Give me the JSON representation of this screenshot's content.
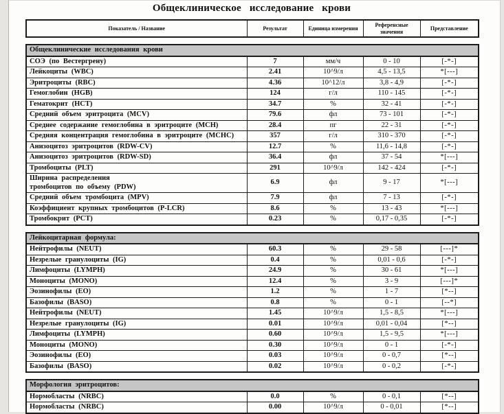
{
  "doc": {
    "title": "Общеклиническое  исследование  крови"
  },
  "colors": {
    "page_bg": "#fdfdfc",
    "margin_bg": "#e7e5e2",
    "border": "#1b1b1b",
    "text": "#111111",
    "section_header_bg": "#c6c6c6"
  },
  "table": {
    "columns": [
      "Показатель / Название",
      "Результат",
      "Единица  измерения",
      "Референсные значения",
      "Представление"
    ],
    "sections": [
      {
        "header": "Общеклинические  исследования  крови",
        "rows": [
          {
            "name": "СОЭ  (по  Вестергрену)",
            "result": "7",
            "unit": "мм/ч",
            "ref": "0 - 10",
            "repr": "[-*-]"
          },
          {
            "name": "Лейкоциты  (WBC)",
            "result": "2.41",
            "unit": "10^9/л",
            "ref": "4,5 - 13,5",
            "repr": "*[---]"
          },
          {
            "name": "Эритроциты  (RBC)",
            "result": "4.36",
            "unit": "10^12/л",
            "ref": "3,8 - 4,9",
            "repr": "[-*-]"
          },
          {
            "name": "Гемоглобин  (HGB)",
            "result": "124",
            "unit": "г/л",
            "ref": "110 - 145",
            "repr": "[-*-]"
          },
          {
            "name": "Гематокрит  (HCT)",
            "result": "34.7",
            "unit": "%",
            "ref": "32 - 41",
            "repr": "[-*-]"
          },
          {
            "name": "Средний объем эритроцита (MCV)",
            "result": "79.6",
            "unit": "фл",
            "ref": "73 - 101",
            "repr": "[-*-]"
          },
          {
            "name": "Среднее содержание гемоглобина в эритроците (MCH)",
            "result": "28.4",
            "unit": "пг",
            "ref": "22 - 31",
            "repr": "[-*-]"
          },
          {
            "name": "Средняя концентрация гемоглобина в эритроците (MCHC)",
            "result": "357",
            "unit": "г/л",
            "ref": "310 - 370",
            "repr": "[-*-]"
          },
          {
            "name": "Анизоцитоз эритроцитов (RDW-CV)",
            "result": "12.7",
            "unit": "%",
            "ref": "11,6 - 14,8",
            "repr": "[-*-]"
          },
          {
            "name": "Анизоцитоз эритроцитов (RDW-SD)",
            "result": "36.4",
            "unit": "фл",
            "ref": "37 - 54",
            "repr": "*[---]"
          },
          {
            "name": "Тромбоциты (PLT)",
            "result": "291",
            "unit": "10^9/л",
            "ref": "142 - 424",
            "repr": "[-*-]"
          },
          {
            "name": "Ширина распределения\nтромбоцитов по объему (PDW)",
            "result": "6.9",
            "unit": "фл",
            "ref": "9 - 17",
            "repr": "*[---]"
          },
          {
            "name": "Средний объем тромбоцита (MPV)",
            "result": "7.9",
            "unit": "фл",
            "ref": "7 - 13",
            "repr": "[-*-]"
          },
          {
            "name": "Коэффициент крупных тромбоцитов (P-LCR)",
            "result": "8.6",
            "unit": "%",
            "ref": "13 - 43",
            "repr": "*[---]"
          },
          {
            "name": "Тромбокрит (PCT)",
            "result": "0.23",
            "unit": "%",
            "ref": "0,17 - 0,35",
            "repr": "[-*-]"
          }
        ]
      },
      {
        "header": "Лейкоцитарная  формула:",
        "rows": [
          {
            "name": "Нейтрофилы (NEUT)",
            "result": "60.3",
            "unit": "%",
            "ref": "29 - 58",
            "repr": "[---]*"
          },
          {
            "name": "Незрелые  гранулоциты  (IG)",
            "result": "0.4",
            "unit": "%",
            "ref": "0,01 - 0,6",
            "repr": "[-*-]"
          },
          {
            "name": "Лимфоциты  (LYMPH)",
            "result": "24.9",
            "unit": "%",
            "ref": "30 - 61",
            "repr": "*[---]"
          },
          {
            "name": "Моноциты  (MONO)",
            "result": "12.4",
            "unit": "%",
            "ref": "3 - 9",
            "repr": "[---]*"
          },
          {
            "name": "Эозинофилы (EO)",
            "result": "1.2",
            "unit": "%",
            "ref": "1 - 7",
            "repr": "[*--]"
          },
          {
            "name": "Базофилы   (BASO)",
            "result": "0.8",
            "unit": "%",
            "ref": "0 - 1",
            "repr": "[--*]"
          },
          {
            "name": "Нейтрофилы (NEUT)",
            "result": "1.45",
            "unit": "10^9/л",
            "ref": "1,5 - 8,5",
            "repr": "*[---]"
          },
          {
            "name": "Незрелые  гранулоциты  (IG)",
            "result": "0.01",
            "unit": "10^9/л",
            "ref": "0,01 - 0,04",
            "repr": "[*--]"
          },
          {
            "name": "Лимфоциты  (LYMPH)",
            "result": "0.60",
            "unit": "10^9/л",
            "ref": "1,5 - 9,5",
            "repr": "*[---]"
          },
          {
            "name": "Моноциты  (MONO)",
            "result": "0.30",
            "unit": "10^9/л",
            "ref": "0 - 1",
            "repr": "[-*-]"
          },
          {
            "name": "Эозинофилы (EO)",
            "result": "0.03",
            "unit": "10^9/л",
            "ref": "0 - 0,7",
            "repr": "[*--]"
          },
          {
            "name": "Базофилы   (BASO)",
            "result": "0.02",
            "unit": "10^9/л",
            "ref": "0 - 0,2",
            "repr": "[-*-]"
          }
        ]
      },
      {
        "header": "Морфология  эритроцитов:",
        "rows": [
          {
            "name": "Нормобласты   (NRBC)",
            "result": "0.0",
            "unit": "%",
            "ref": "0 - 0,1",
            "repr": "[*--]"
          },
          {
            "name": "Нормобласты   (NRBC)",
            "result": "0.00",
            "unit": "10^9/л",
            "ref": "0 - 0,01",
            "repr": "[*--]"
          }
        ]
      }
    ]
  }
}
